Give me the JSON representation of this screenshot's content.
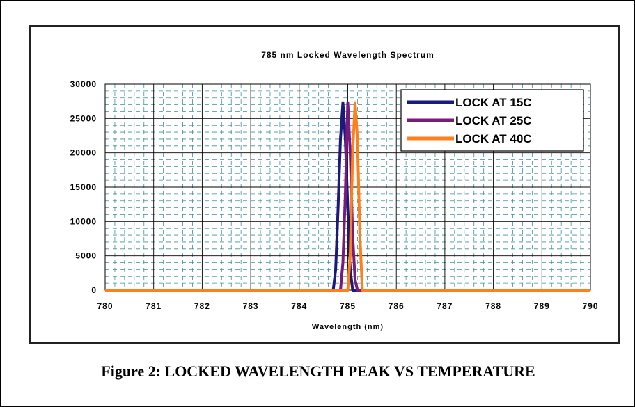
{
  "chart_data": {
    "type": "line",
    "title": "785 nm Locked Wavelength Spectrum",
    "xlabel": "Wavelength (nm)",
    "ylabel": "",
    "xlim": [
      780,
      790
    ],
    "ylim": [
      0,
      30000
    ],
    "xticks": [
      "780",
      "781",
      "782",
      "783",
      "784",
      "785",
      "786",
      "787",
      "788",
      "789",
      "790"
    ],
    "yticks": [
      "0",
      "5000",
      "10000",
      "15000",
      "20000",
      "25000",
      "30000"
    ],
    "grid": true,
    "legend": "top-right",
    "series": [
      {
        "name": "LOCK AT 15C",
        "color": "#1a1a7a",
        "x": [
          780.0,
          780.2,
          784.7,
          784.75,
          784.8,
          784.85,
          784.9,
          784.95,
          785.0,
          785.05,
          785.1,
          785.15,
          790.0
        ],
        "y": [
          0,
          0,
          0,
          3000,
          12000,
          22000,
          27300,
          22000,
          12000,
          3000,
          0,
          0,
          0
        ]
      },
      {
        "name": "LOCK AT 25C",
        "color": "#7a1a7a",
        "x": [
          780.0,
          780.2,
          784.85,
          784.9,
          784.95,
          785.0,
          785.05,
          785.1,
          785.15,
          785.2,
          785.25,
          790.0
        ],
        "y": [
          0,
          0,
          0,
          4000,
          14000,
          27300,
          20000,
          8000,
          1500,
          0,
          0,
          0
        ]
      },
      {
        "name": "LOCK AT 40C",
        "color": "#ff7f1a",
        "x": [
          780.0,
          785.0,
          785.05,
          785.1,
          785.15,
          785.2,
          785.25,
          785.3,
          790.0
        ],
        "y": [
          0,
          0,
          5000,
          20000,
          27300,
          22000,
          8000,
          0,
          0
        ]
      }
    ]
  },
  "caption": "Figure 2: LOCKED WAVELENGTH PEAK VS TEMPERATURE"
}
